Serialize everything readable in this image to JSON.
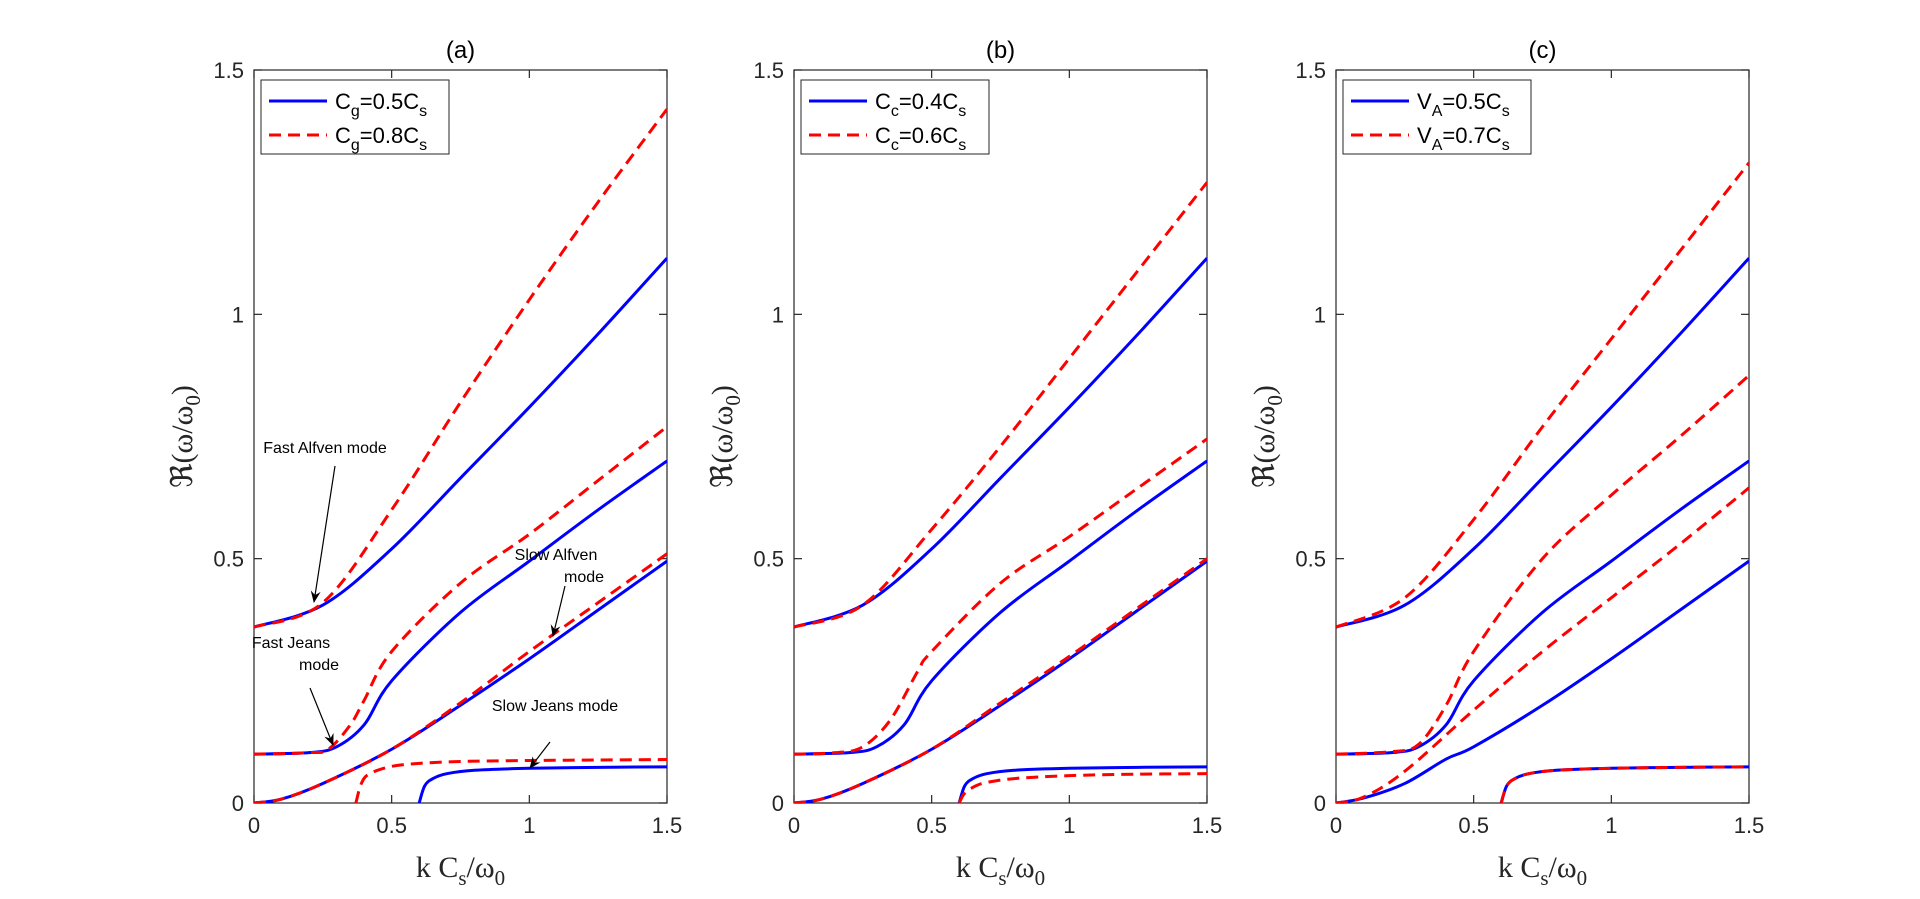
{
  "chart_data": [
    {
      "type": "line",
      "title": "(a)",
      "xlabel": {
        "main": "k C",
        "sub": "s",
        "tail": "/ω",
        "sub2": "0"
      },
      "ylabel": {
        "main": "ℜ(ω/ω",
        "sub": "0",
        "tail": ")"
      },
      "xlim": [
        0,
        1.5
      ],
      "ylim": [
        0,
        1.5
      ],
      "xticks": [
        "0",
        "0.5",
        "1",
        "1.5"
      ],
      "yticks": [
        "0",
        "0.5",
        "1",
        "1.5"
      ],
      "legend_position": "top-left",
      "legend": [
        {
          "style": "solid",
          "color": "#0000ff",
          "pre": "C",
          "sub": "g",
          "mid": "=0.5C",
          "sub2": "s"
        },
        {
          "style": "dashed",
          "color": "#ff0000",
          "pre": "C",
          "sub": "g",
          "mid": "=0.8C",
          "sub2": "s"
        }
      ],
      "annotations": [
        {
          "lines": [
            "Fast Alfven mode"
          ]
        },
        {
          "lines": [
            "Slow Alfven",
            "mode"
          ]
        },
        {
          "lines": [
            "Fast Jeans",
            "mode"
          ]
        },
        {
          "lines": [
            "Slow Jeans mode"
          ]
        }
      ],
      "series": [
        {
          "style": "solid",
          "color": "#0000ff",
          "x": [
            0,
            0.25,
            0.5,
            0.75,
            1.0,
            1.25,
            1.5
          ],
          "y": [
            0.36,
            0.405,
            0.52,
            0.665,
            0.81,
            0.96,
            1.115
          ]
        },
        {
          "style": "solid",
          "color": "#0000ff",
          "x": [
            0,
            0.2,
            0.3,
            0.4,
            0.5,
            0.75,
            1.0,
            1.25,
            1.5
          ],
          "y": [
            0.1,
            0.103,
            0.115,
            0.16,
            0.25,
            0.39,
            0.495,
            0.6,
            0.7
          ]
        },
        {
          "style": "solid",
          "color": "#0000ff",
          "x": [
            0,
            0.1,
            0.25,
            0.5,
            0.75,
            1.0,
            1.25,
            1.5
          ],
          "y": [
            0,
            0.008,
            0.04,
            0.11,
            0.2,
            0.295,
            0.395,
            0.495
          ]
        },
        {
          "style": "solid",
          "color": "#0000ff",
          "x": [
            0.6,
            0.62,
            0.65,
            0.7,
            0.8,
            1.0,
            1.25,
            1.5
          ],
          "y": [
            0,
            0.035,
            0.05,
            0.06,
            0.067,
            0.071,
            0.073,
            0.074
          ]
        },
        {
          "style": "dashed",
          "color": "#ff0000",
          "x": [
            0,
            0.25,
            0.5,
            0.75,
            1.0,
            1.25,
            1.5
          ],
          "y": [
            0.36,
            0.41,
            0.6,
            0.82,
            1.03,
            1.23,
            1.42
          ]
        },
        {
          "style": "dashed",
          "color": "#ff0000",
          "x": [
            0,
            0.2,
            0.27,
            0.35,
            0.4,
            0.5,
            0.75,
            1.0,
            1.25,
            1.5
          ],
          "y": [
            0.1,
            0.103,
            0.11,
            0.16,
            0.21,
            0.31,
            0.45,
            0.55,
            0.66,
            0.77
          ]
        },
        {
          "style": "dashed",
          "color": "#ff0000",
          "x": [
            0,
            0.1,
            0.25,
            0.5,
            0.75,
            1.0,
            1.25,
            1.5
          ],
          "y": [
            0,
            0.008,
            0.04,
            0.11,
            0.205,
            0.31,
            0.41,
            0.51
          ]
        },
        {
          "style": "dashed",
          "color": "#ff0000",
          "x": [
            0.37,
            0.39,
            0.42,
            0.5,
            0.6,
            0.75,
            1.0,
            1.25,
            1.5
          ],
          "y": [
            0,
            0.04,
            0.06,
            0.075,
            0.081,
            0.085,
            0.087,
            0.088,
            0.089
          ]
        }
      ]
    },
    {
      "type": "line",
      "title": "(b)",
      "xlabel": {
        "main": "k C",
        "sub": "s",
        "tail": "/ω",
        "sub2": "0"
      },
      "ylabel": {
        "main": "ℜ(ω/ω",
        "sub": "0",
        "tail": ")"
      },
      "xlim": [
        0,
        1.5
      ],
      "ylim": [
        0,
        1.5
      ],
      "xticks": [
        "0",
        "0.5",
        "1",
        "1.5"
      ],
      "yticks": [
        "0",
        "0.5",
        "1",
        "1.5"
      ],
      "legend_position": "top-left",
      "legend": [
        {
          "style": "solid",
          "color": "#0000ff",
          "pre": "C",
          "sub": "c",
          "mid": "=0.4C",
          "sub2": "s"
        },
        {
          "style": "dashed",
          "color": "#ff0000",
          "pre": "C",
          "sub": "c",
          "mid": "=0.6C",
          "sub2": "s"
        }
      ],
      "annotations": [],
      "series": [
        {
          "style": "solid",
          "color": "#0000ff",
          "x": [
            0,
            0.25,
            0.5,
            0.75,
            1.0,
            1.25,
            1.5
          ],
          "y": [
            0.36,
            0.405,
            0.52,
            0.665,
            0.81,
            0.96,
            1.115
          ]
        },
        {
          "style": "solid",
          "color": "#0000ff",
          "x": [
            0,
            0.2,
            0.3,
            0.4,
            0.5,
            0.75,
            1.0,
            1.25,
            1.5
          ],
          "y": [
            0.1,
            0.103,
            0.115,
            0.16,
            0.25,
            0.39,
            0.495,
            0.6,
            0.7
          ]
        },
        {
          "style": "solid",
          "color": "#0000ff",
          "x": [
            0,
            0.1,
            0.25,
            0.5,
            0.75,
            1.0,
            1.25,
            1.5
          ],
          "y": [
            0,
            0.008,
            0.04,
            0.11,
            0.2,
            0.295,
            0.395,
            0.495
          ]
        },
        {
          "style": "solid",
          "color": "#0000ff",
          "x": [
            0.6,
            0.62,
            0.65,
            0.7,
            0.8,
            1.0,
            1.25,
            1.5
          ],
          "y": [
            0,
            0.035,
            0.05,
            0.06,
            0.067,
            0.071,
            0.073,
            0.074
          ]
        },
        {
          "style": "dashed",
          "color": "#ff0000",
          "x": [
            0,
            0.25,
            0.5,
            0.75,
            1.0,
            1.25,
            1.5
          ],
          "y": [
            0.36,
            0.405,
            0.56,
            0.73,
            0.91,
            1.09,
            1.27
          ]
        },
        {
          "style": "dashed",
          "color": "#ff0000",
          "x": [
            0,
            0.15,
            0.25,
            0.35,
            0.45,
            0.5,
            0.75,
            1.0,
            1.25,
            1.5
          ],
          "y": [
            0.1,
            0.103,
            0.115,
            0.17,
            0.27,
            0.31,
            0.45,
            0.545,
            0.645,
            0.745
          ]
        },
        {
          "style": "dashed",
          "color": "#ff0000",
          "x": [
            0,
            0.1,
            0.25,
            0.5,
            0.75,
            1.0,
            1.25,
            1.5
          ],
          "y": [
            0,
            0.008,
            0.04,
            0.11,
            0.205,
            0.3,
            0.4,
            0.5
          ]
        },
        {
          "style": "dashed",
          "color": "#ff0000",
          "x": [
            0.6,
            0.62,
            0.66,
            0.7,
            0.8,
            1.0,
            1.25,
            1.5
          ],
          "y": [
            0,
            0.02,
            0.035,
            0.042,
            0.05,
            0.056,
            0.059,
            0.06
          ]
        }
      ]
    },
    {
      "type": "line",
      "title": "(c)",
      "xlabel": {
        "main": "k C",
        "sub": "s",
        "tail": "/ω",
        "sub2": "0"
      },
      "ylabel": {
        "main": "ℜ(ω/ω",
        "sub": "0",
        "tail": ")"
      },
      "xlim": [
        0,
        1.5
      ],
      "ylim": [
        0,
        1.5
      ],
      "xticks": [
        "0",
        "0.5",
        "1",
        "1.5"
      ],
      "yticks": [
        "0",
        "0.5",
        "1",
        "1.5"
      ],
      "legend_position": "top-left",
      "legend": [
        {
          "style": "solid",
          "color": "#0000ff",
          "pre": "V",
          "sub": "A",
          "mid": "=0.5C",
          "sub2": "s"
        },
        {
          "style": "dashed",
          "color": "#ff0000",
          "pre": "V",
          "sub": "A",
          "mid": "=0.7C",
          "sub2": "s"
        }
      ],
      "annotations": [],
      "series": [
        {
          "style": "solid",
          "color": "#0000ff",
          "x": [
            0,
            0.25,
            0.5,
            0.75,
            1.0,
            1.25,
            1.5
          ],
          "y": [
            0.36,
            0.405,
            0.52,
            0.665,
            0.81,
            0.96,
            1.115
          ]
        },
        {
          "style": "solid",
          "color": "#0000ff",
          "x": [
            0,
            0.2,
            0.3,
            0.4,
            0.5,
            0.75,
            1.0,
            1.25,
            1.5
          ],
          "y": [
            0.1,
            0.103,
            0.115,
            0.16,
            0.25,
            0.39,
            0.495,
            0.6,
            0.7
          ]
        },
        {
          "style": "solid",
          "color": "#0000ff",
          "x": [
            0,
            0.1,
            0.25,
            0.4,
            0.5,
            0.75,
            1.0,
            1.25,
            1.5
          ],
          "y": [
            0,
            0.01,
            0.04,
            0.09,
            0.115,
            0.2,
            0.295,
            0.395,
            0.495
          ]
        },
        {
          "style": "solid",
          "color": "#0000ff",
          "x": [
            0.6,
            0.62,
            0.65,
            0.7,
            0.8,
            1.0,
            1.25,
            1.5
          ],
          "y": [
            0,
            0.035,
            0.05,
            0.06,
            0.067,
            0.071,
            0.073,
            0.074
          ]
        },
        {
          "style": "dashed",
          "color": "#ff0000",
          "x": [
            0,
            0.25,
            0.5,
            0.75,
            1.0,
            1.25,
            1.5
          ],
          "y": [
            0.36,
            0.42,
            0.58,
            0.77,
            0.95,
            1.13,
            1.31
          ]
        },
        {
          "style": "dashed",
          "color": "#ff0000",
          "x": [
            0,
            0.2,
            0.3,
            0.4,
            0.5,
            0.75,
            1.0,
            1.25,
            1.5
          ],
          "y": [
            0.1,
            0.105,
            0.12,
            0.2,
            0.31,
            0.5,
            0.63,
            0.75,
            0.875
          ]
        },
        {
          "style": "dashed",
          "color": "#ff0000",
          "x": [
            0,
            0.1,
            0.25,
            0.5,
            0.75,
            1.0,
            1.25,
            1.5
          ],
          "y": [
            0,
            0.012,
            0.065,
            0.19,
            0.31,
            0.42,
            0.53,
            0.645
          ]
        },
        {
          "style": "dashed",
          "color": "#ff0000",
          "x": [
            0.6,
            0.62,
            0.65,
            0.7,
            0.8,
            1.0,
            1.25,
            1.5
          ],
          "y": [
            0,
            0.035,
            0.05,
            0.06,
            0.067,
            0.071,
            0.073,
            0.074
          ]
        }
      ]
    }
  ]
}
